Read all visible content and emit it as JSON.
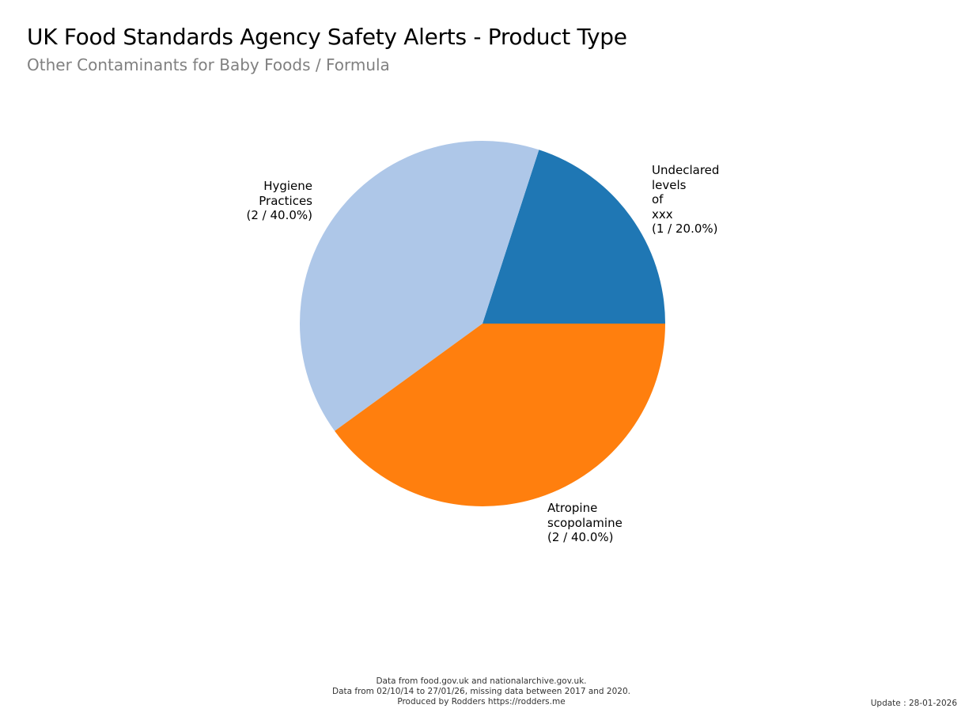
{
  "chart_data": {
    "type": "pie",
    "title": "UK Food Standards Agency Safety Alerts - Product Type",
    "subtitle": "Other Contaminants for Baby Foods / Formula",
    "slices": [
      {
        "label": "Undeclared\nlevels\nof\nxxx\n(1 / 20.0%)",
        "name": "Undeclared levels of xxx",
        "value": 1,
        "percent": 20.0,
        "color": "#1f77b4"
      },
      {
        "label": "Hygiene\nPractices\n(2 / 40.0%)",
        "name": "Hygiene Practices",
        "value": 2,
        "percent": 40.0,
        "color": "#aec7e8"
      },
      {
        "label": "Atropine\nscopolamine\n(2 / 40.0%)",
        "name": "Atropine scopolamine",
        "value": 2,
        "percent": 40.0,
        "color": "#ff7f0e"
      }
    ],
    "start_angle": 0,
    "direction": "counterclockwise"
  },
  "footer": {
    "line1": "Data from food.gov.uk and nationalarchive.gov.uk.",
    "line2": "Data from 02/10/14 to 27/01/26, missing data between 2017 and 2020.",
    "line3": "Produced by Rodders https://rodders.me",
    "update": "Update : 28-01-2026"
  }
}
